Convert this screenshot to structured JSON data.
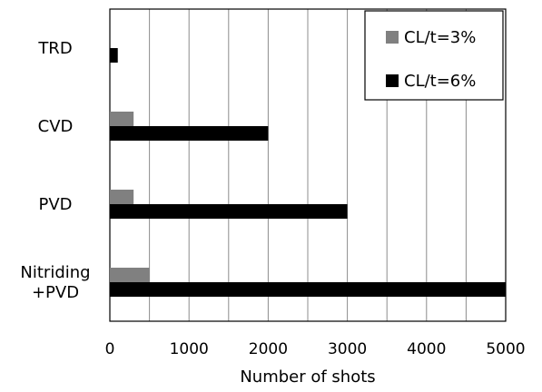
{
  "chart_data": {
    "type": "bar",
    "orientation": "horizontal",
    "categories": [
      [
        "TRD"
      ],
      [
        "CVD"
      ],
      [
        "PVD"
      ],
      [
        "Nitriding",
        "+PVD"
      ]
    ],
    "series": [
      {
        "name": "CL/t=3%",
        "color": "#808080",
        "values": [
          0,
          300,
          300,
          500
        ]
      },
      {
        "name": "CL/t=6%",
        "color": "#000000",
        "values": [
          100,
          2000,
          3000,
          5000
        ]
      }
    ],
    "xlabel": "Number of shots",
    "ylabel": "",
    "xlim": [
      0,
      5000
    ],
    "xticks": [
      "0",
      "1000",
      "2000",
      "3000",
      "4000",
      "5000"
    ],
    "grid": "vertical",
    "legend_position": "top-right"
  }
}
